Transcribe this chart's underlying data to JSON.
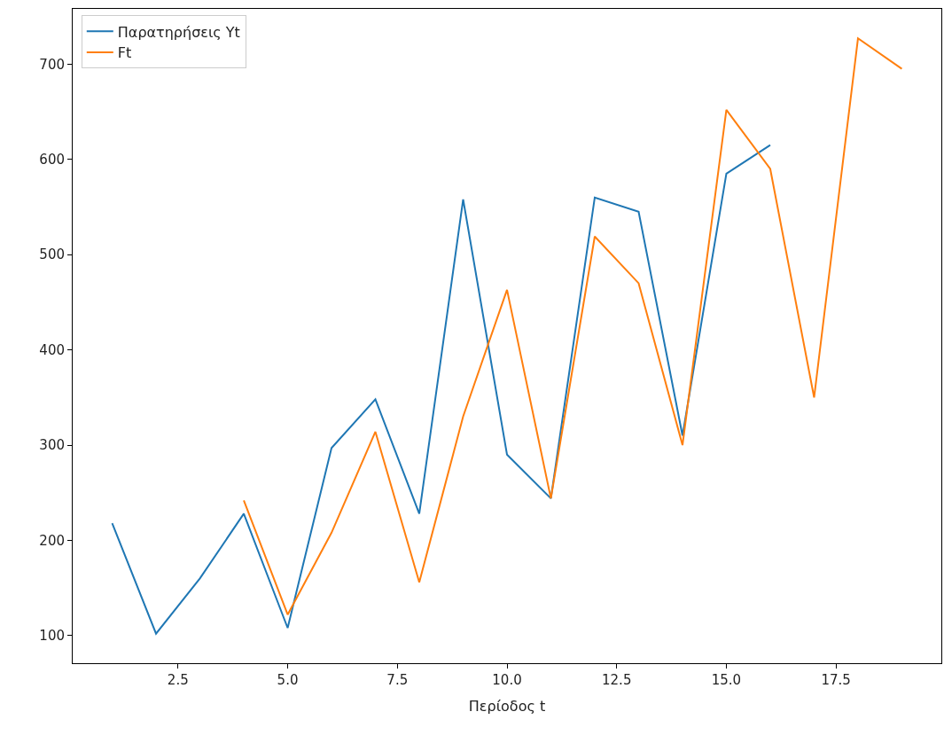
{
  "chart_data": {
    "type": "line",
    "xlabel": "Περίοδος t",
    "series": [
      {
        "name": "Παρατηρήσεις Yt",
        "color": "#1f77b4",
        "x": [
          1,
          2,
          3,
          4,
          5,
          6,
          7,
          8,
          9,
          10,
          11,
          12,
          13,
          14,
          15,
          16
        ],
        "values": [
          218,
          102,
          160,
          228,
          108,
          297,
          348,
          228,
          558,
          290,
          244,
          560,
          545,
          310,
          585,
          615
        ]
      },
      {
        "name": "Ft",
        "color": "#ff7f0e",
        "x": [
          4,
          5,
          6,
          7,
          8,
          9,
          10,
          11,
          12,
          13,
          14,
          15,
          16,
          17,
          18,
          19
        ],
        "values": [
          242,
          122,
          208,
          314,
          156,
          330,
          463,
          244,
          519,
          470,
          300,
          652,
          590,
          350,
          727,
          695
        ]
      }
    ],
    "xlim": [
      0.1,
      19.9
    ],
    "xticks": [
      2.5,
      {
        "value": 5,
        "label": "5.0"
      },
      7.5,
      {
        "value": 10,
        "label": "10.0"
      },
      12.5,
      {
        "value": 15,
        "label": "15.0"
      },
      17.5
    ],
    "ylim": [
      71,
      758
    ],
    "yticks": [
      100,
      200,
      300,
      400,
      500,
      600,
      700
    ],
    "legend": "top left",
    "line_style": "solid"
  }
}
